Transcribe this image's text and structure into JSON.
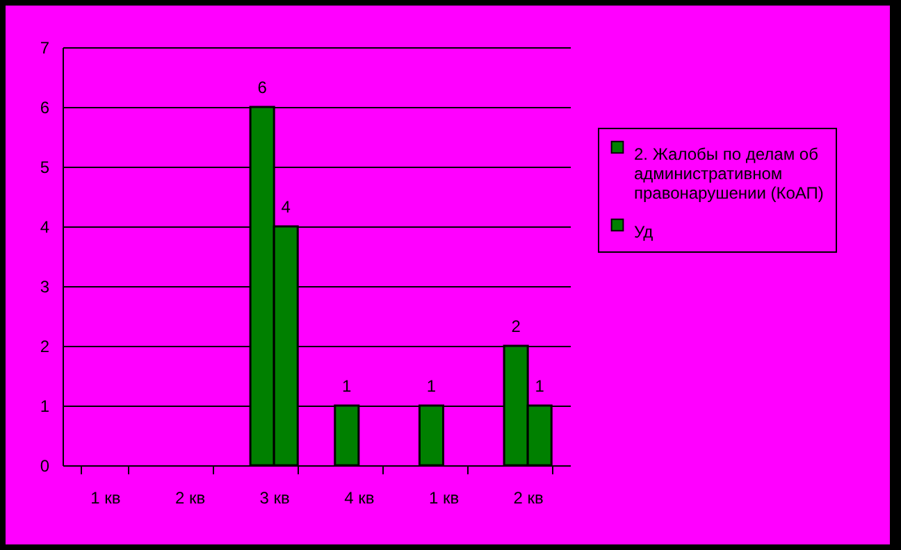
{
  "chart_data": {
    "type": "bar",
    "categories": [
      "1 кв",
      "2 кв",
      "3 кв",
      "4 кв",
      "1 кв",
      "2 кв"
    ],
    "series": [
      {
        "name": "2. Жалобы по делам об административном правонарушении (КоАП)",
        "color": "#008000",
        "values": [
          null,
          null,
          6,
          1,
          1,
          2
        ]
      },
      {
        "name": "Уд",
        "color": "#008000",
        "values": [
          null,
          null,
          4,
          null,
          null,
          1
        ]
      }
    ],
    "ylim": [
      0,
      7
    ],
    "yticks": [
      0,
      1,
      2,
      3,
      4,
      5,
      6,
      7
    ],
    "grid": "y",
    "legend": "right",
    "data_labels": true
  }
}
